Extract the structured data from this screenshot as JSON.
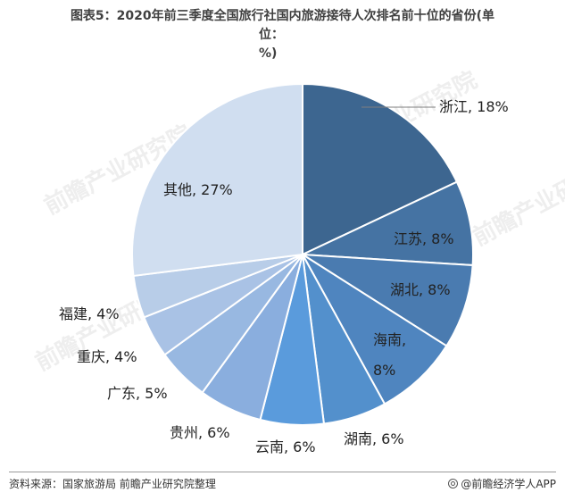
{
  "chart_data": {
    "type": "pie",
    "title": "图表5：2020年前三季度全国旅行社国内旅游接待人次排名前十位的省份(单位：%)",
    "title_line1": "图表5：2020年前三季度全国旅行社国内旅游接待人次排名前十位的省份(单",
    "title_line2": "位：%)",
    "slices": [
      {
        "name": "浙江",
        "value": 18,
        "label": "浙江, 18%",
        "color": "#3d6690"
      },
      {
        "name": "江苏",
        "value": 8,
        "label": "江苏, 8%",
        "color": "#4573a3"
      },
      {
        "name": "湖北",
        "value": 8,
        "label": "湖北, 8%",
        "color": "#4a7bb0"
      },
      {
        "name": "海南",
        "value": 8,
        "label_lines": [
          "海南,",
          "8%"
        ],
        "color": "#4f85bf"
      },
      {
        "name": "湖南",
        "value": 6,
        "label": "湖南, 6%",
        "color": "#5390cc"
      },
      {
        "name": "云南",
        "value": 6,
        "label": "云南, 6%",
        "color": "#5a9bdc"
      },
      {
        "name": "贵州",
        "value": 6,
        "label": "贵州, 6%",
        "color": "#8aaede"
      },
      {
        "name": "广东",
        "value": 5,
        "label": "广东, 5%",
        "color": "#98b8e1"
      },
      {
        "name": "重庆",
        "value": 4,
        "label": "重庆, 4%",
        "color": "#a9c2e5"
      },
      {
        "name": "福建",
        "value": 4,
        "label": "福建, 4%",
        "color": "#b8cde8"
      },
      {
        "name": "其他",
        "value": 27,
        "label": "其他, 27%",
        "color": "#d0def0"
      }
    ]
  },
  "footer": {
    "source": "资料来源：国家旅游局 前瞻产业研究院整理",
    "brand": "@前瞻经济学人APP"
  },
  "watermarks": [
    "前瞻产业研究院",
    "前瞻产业研究院",
    "前瞻产业研究院",
    "前瞻产业研究院",
    "前瞻产业研究院"
  ]
}
